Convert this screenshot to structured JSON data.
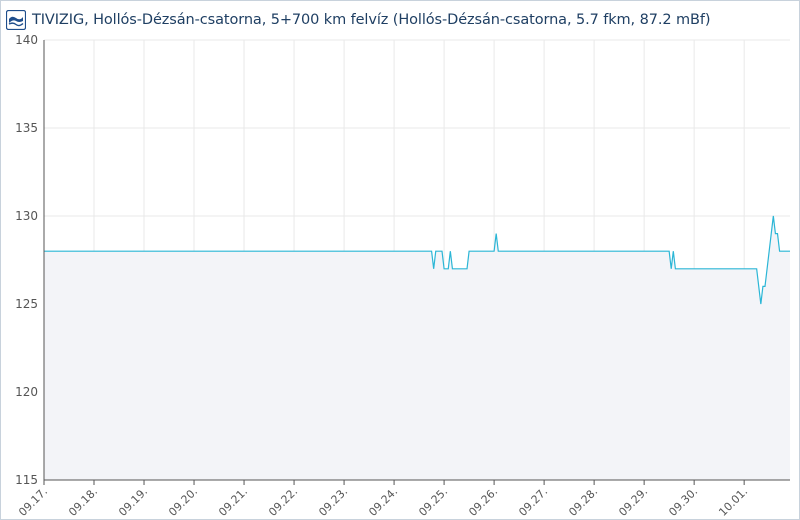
{
  "header": {
    "logo_icon": "tivizig-wave-logo-icon",
    "title": "TIVIZIG, Hollós-Dézsán-csatorna, 5+700 km felvíz (Hollós-Dézsán-csatorna, 5.7 fkm, 87.2 mBf)"
  },
  "colors": {
    "line": "#2bb6d6",
    "area": "#f3f4f8",
    "grid": "#e9e9e9",
    "axis": "#555555",
    "title": "#1f3f63",
    "logo": "#1f4e8c"
  },
  "chart_data": {
    "type": "line",
    "title": "",
    "xlabel": "",
    "ylabel": "",
    "ylim": [
      115,
      140
    ],
    "y_ticks": [
      115,
      120,
      125,
      130,
      135,
      140
    ],
    "grid": true,
    "legend": "none",
    "x_range": [
      "09.17.",
      "10.01. 22:00"
    ],
    "x_ticks": [
      "09.17.",
      "09.18.",
      "09.19.",
      "09.20.",
      "09.21.",
      "09.22.",
      "09.23.",
      "09.24.",
      "09.25.",
      "09.26.",
      "09.27.",
      "09.28.",
      "09.29.",
      "09.30.",
      "10.01."
    ],
    "series": [
      {
        "x": [
          "09.17. 00:00",
          "09.24. 18:00",
          "09.24. 19:00",
          "09.24. 20:00",
          "09.24. 23:00",
          "09.25. 00:00",
          "09.25. 02:00",
          "09.25. 03:00",
          "09.25. 04:00",
          "09.25. 11:00",
          "09.25. 12:00",
          "09.26. 00:00",
          "09.26. 01:00",
          "09.26. 02:00",
          "09.29. 12:00",
          "09.29. 13:00",
          "09.29. 14:00",
          "09.29. 15:00",
          "09.29. 16:00",
          "10.01. 06:00",
          "10.01. 07:00",
          "10.01. 08:00",
          "10.01. 09:00",
          "10.01. 10:00",
          "10.01. 11:00",
          "10.01. 12:00",
          "10.01. 13:00",
          "10.01. 14:00",
          "10.01. 15:00",
          "10.01. 16:00",
          "10.01. 17:00",
          "10.01. 18:00",
          "10.01. 19:00",
          "10.01. 20:00",
          "10.01. 21:00",
          "10.01. 22:00"
        ],
        "y": [
          128,
          128,
          127,
          128,
          128,
          127,
          127,
          128,
          127,
          127,
          128,
          128,
          129,
          128,
          128,
          127,
          128,
          127,
          127,
          127,
          126,
          125,
          126,
          126,
          127,
          128,
          129,
          130,
          129,
          129,
          128,
          128,
          128,
          128,
          128,
          128
        ]
      }
    ]
  }
}
